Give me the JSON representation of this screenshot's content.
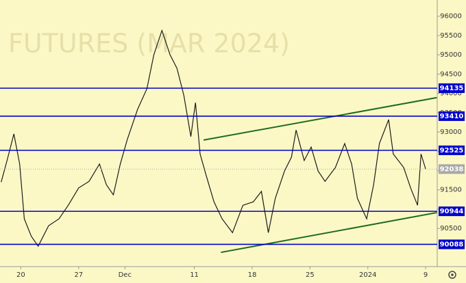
{
  "chart_data": {
    "type": "line",
    "watermark": "FUTURES (MAR 2024)",
    "x": [
      -1.7,
      -1.2,
      -0.6,
      -0.1,
      0.3,
      0.9,
      1.5,
      2.4,
      3.3,
      4.1,
      5.0,
      5.9,
      6.8,
      7.4,
      8.0,
      8.6,
      9.2,
      10.1,
      10.9,
      11.5,
      12.2,
      12.9,
      13.5,
      14.1,
      14.7,
      15.1,
      15.5,
      16.0,
      16.7,
      17.4,
      18.3,
      19.2,
      20.1,
      20.8,
      21.4,
      22.0,
      22.8,
      23.4,
      23.8,
      24.5,
      25.1,
      25.7,
      26.3,
      27.2,
      28.0,
      28.6,
      29.1,
      29.9,
      30.5,
      31.0,
      31.8,
      32.2,
      33.1,
      33.7,
      34.3,
      34.6,
      35.0
    ],
    "series": [
      {
        "color": "#1a1a1a",
        "values": [
          91700,
          92250,
          92950,
          92170,
          90750,
          90300,
          90040,
          90570,
          90750,
          91100,
          91550,
          91720,
          92170,
          91630,
          91370,
          92170,
          92800,
          93590,
          94120,
          95000,
          95630,
          95000,
          94650,
          93940,
          92880,
          93760,
          92430,
          91900,
          91190,
          90750,
          90390,
          91100,
          91190,
          91460,
          90390,
          91280,
          91990,
          92350,
          93050,
          92260,
          92610,
          91990,
          91720,
          92080,
          92700,
          92170,
          91280,
          90750,
          91630,
          92700,
          93320,
          92430,
          92080,
          91550,
          91100,
          92430,
          92038
        ]
      }
    ],
    "xlim": [
      -1.8,
      36
    ],
    "ylim": [
      89600,
      96420
    ],
    "xticks": [
      {
        "value": 0,
        "label": "20"
      },
      {
        "value": 5,
        "label": "27"
      },
      {
        "value": 9,
        "label": "Dec"
      },
      {
        "value": 15,
        "label": "11"
      },
      {
        "value": 20,
        "label": "18"
      },
      {
        "value": 25,
        "label": "25"
      },
      {
        "value": 30,
        "label": "2024"
      },
      {
        "value": 35,
        "label": "9"
      }
    ],
    "yticks": [
      90500,
      91000,
      91500,
      92000,
      92500,
      93000,
      93500,
      94000,
      94500,
      95000,
      95500,
      96000
    ],
    "levels": [
      {
        "value": 94135,
        "color": "#0000cc"
      },
      {
        "value": 93410,
        "color": "#0000cc"
      },
      {
        "value": 92525,
        "color": "#0000cc"
      },
      {
        "value": 90944,
        "color": "#0000cc"
      },
      {
        "value": 90088,
        "color": "#0000cc"
      }
    ],
    "last_price": 92038,
    "trendlines": [
      {
        "color": "#1f6b1f",
        "x": [
          15.8,
          35.96
        ],
        "y": [
          92790,
          93890
        ]
      },
      {
        "color": "#1f6b1f",
        "x": [
          17.3,
          35.96
        ],
        "y": [
          89880,
          90910
        ]
      }
    ],
    "grid": false
  }
}
